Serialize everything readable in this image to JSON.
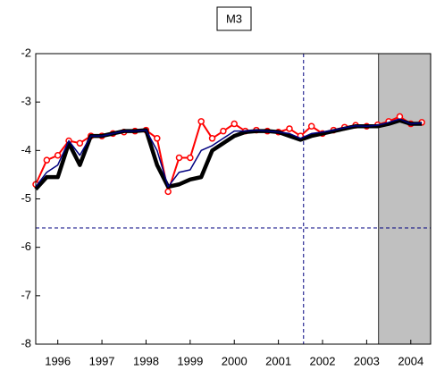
{
  "chart_data": {
    "type": "line",
    "title": "M3",
    "x": [
      1995.5,
      1995.75,
      1996.0,
      1996.25,
      1996.5,
      1996.75,
      1997.0,
      1997.25,
      1997.5,
      1997.75,
      1998.0,
      1998.25,
      1998.5,
      1998.75,
      1999.0,
      1999.25,
      1999.5,
      1999.75,
      2000.0,
      2000.25,
      2000.5,
      2000.75,
      2001.0,
      2001.25,
      2001.5,
      2001.75,
      2002.0,
      2002.25,
      2002.5,
      2002.75,
      2003.0,
      2003.25,
      2003.5,
      2003.75,
      2004.0,
      2004.25
    ],
    "series": [
      {
        "color": "#ff0000",
        "marker": "circle",
        "width": 2,
        "values": [
          -4.7,
          -4.2,
          -4.1,
          -3.8,
          -3.85,
          -3.7,
          -3.7,
          -3.65,
          -3.62,
          -3.6,
          -3.58,
          -3.75,
          -4.85,
          -4.15,
          -4.15,
          -3.4,
          -3.75,
          -3.6,
          -3.45,
          -3.6,
          -3.58,
          -3.6,
          -3.62,
          -3.55,
          -3.7,
          -3.5,
          -3.65,
          -3.58,
          -3.52,
          -3.48,
          -3.5,
          -3.47,
          -3.4,
          -3.3,
          -3.45,
          -3.42
        ]
      },
      {
        "color": "#000000",
        "width": 4.5,
        "values": [
          -4.8,
          -4.55,
          -4.55,
          -3.85,
          -4.3,
          -3.7,
          -3.7,
          -3.65,
          -3.6,
          -3.6,
          -3.58,
          -4.3,
          -4.75,
          -4.7,
          -4.6,
          -4.55,
          -4.0,
          -3.85,
          -3.7,
          -3.62,
          -3.6,
          -3.6,
          -3.62,
          -3.7,
          -3.78,
          -3.7,
          -3.65,
          -3.6,
          -3.55,
          -3.5,
          -3.5,
          -3.5,
          -3.45,
          -3.38,
          -3.45,
          -3.45
        ]
      },
      {
        "color": "#000080",
        "width": 1.5,
        "values": [
          -4.75,
          -4.45,
          -4.3,
          -3.8,
          -4.1,
          -3.7,
          -3.7,
          -3.65,
          -3.6,
          -3.6,
          -3.58,
          -4.0,
          -4.75,
          -4.45,
          -4.4,
          -4.0,
          -3.9,
          -3.75,
          -3.6,
          -3.6,
          -3.58,
          -3.6,
          -3.62,
          -3.65,
          -3.75,
          -3.65,
          -3.62,
          -3.58,
          -3.53,
          -3.49,
          -3.5,
          -3.48,
          -3.42,
          -3.35,
          -3.45,
          -3.43
        ]
      }
    ],
    "xlim": [
      1995.5,
      2004.45
    ],
    "ylim": [
      -8,
      -2
    ],
    "xticks": [
      1996,
      1997,
      1998,
      1999,
      2000,
      2001,
      2002,
      2003,
      2004
    ],
    "yticks": [
      -2,
      -3,
      -4,
      -5,
      -6,
      -7,
      -8
    ],
    "reference_lines": {
      "x": 2001.57,
      "y": -5.6,
      "color": "#000080"
    },
    "shaded_region": {
      "x": [
        2003.27,
        2004.45
      ],
      "color": "#c0c0c0"
    }
  }
}
